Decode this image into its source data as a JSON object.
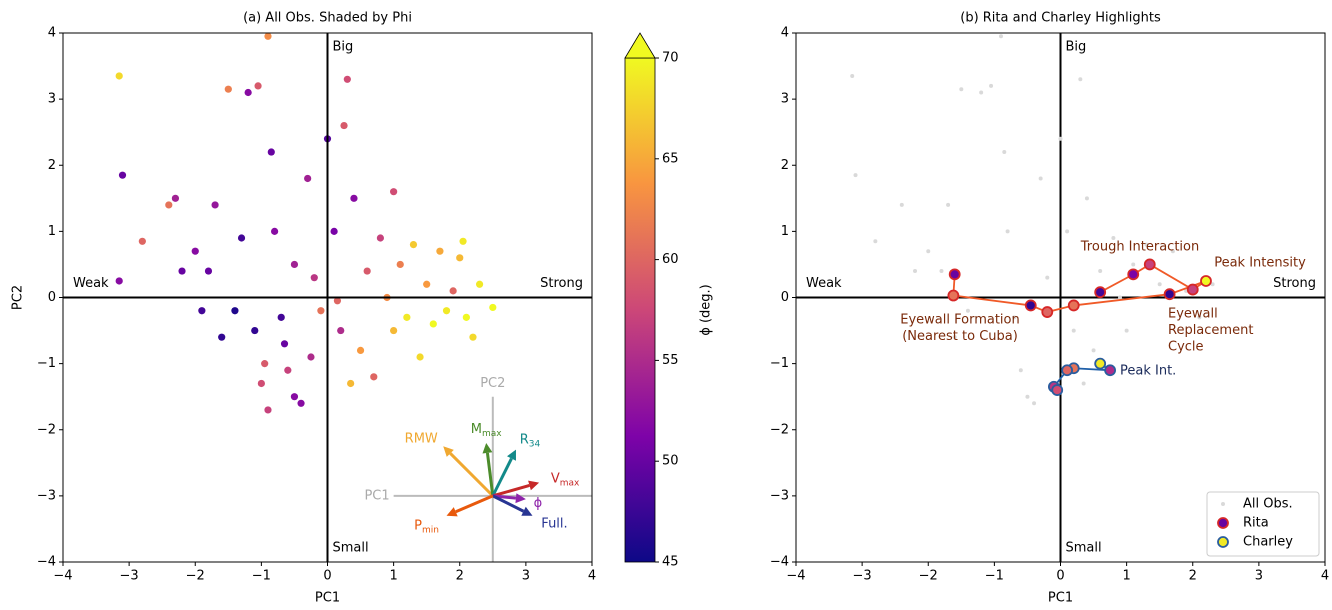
{
  "chart_data": [
    {
      "type": "scatter",
      "title": "(a) All Obs. Shaded by Phi",
      "x_label": "PC1",
      "y_label": "PC2",
      "xlim": [
        -4,
        4
      ],
      "ylim": [
        -4,
        4
      ],
      "xticks": [
        {
          "value": -4,
          "label": "−4"
        },
        {
          "value": -3,
          "label": "−3"
        },
        {
          "value": -2,
          "label": "−2"
        },
        {
          "value": -1,
          "label": "−1"
        },
        0,
        1,
        2,
        3,
        4
      ],
      "yticks": [
        {
          "value": -4,
          "label": "−4"
        },
        {
          "value": -3,
          "label": "−3"
        },
        {
          "value": -2,
          "label": "−2"
        },
        {
          "value": -1,
          "label": "−1"
        },
        0,
        1,
        2,
        3,
        4
      ],
      "quadrant_labels": {
        "top": "Big",
        "bottom": "Small",
        "left": "Weak",
        "right": "Strong"
      },
      "x": [
        -3.15,
        -3.1,
        -3.15,
        -2.8,
        -2.4,
        -2.3,
        -2,
        -1.9,
        -1.8,
        -1.6,
        -1.5,
        -1.2,
        -1.05,
        -0.9,
        -0.85,
        -0.8,
        -0.7,
        -0.6,
        -0.5,
        -0.95,
        -1.1,
        -1.3,
        -0.3,
        -0.2,
        -0.1,
        0,
        0.1,
        0.2,
        0.25,
        0.3,
        0.4,
        0.5,
        0.6,
        0.7,
        0.8,
        0.9,
        1,
        1,
        1.1,
        1.2,
        1.3,
        1.4,
        1.5,
        1.6,
        1.7,
        1.8,
        1.9,
        2,
        2.1,
        2.2,
        2.3,
        2.5,
        2.05,
        -0.4,
        -0.9,
        0.35,
        -0.25,
        -1.4,
        -2.2,
        -1.7,
        -0.5,
        0.15,
        -0.65,
        -1
      ],
      "y": [
        3.35,
        1.85,
        0.25,
        0.85,
        1.4,
        1.5,
        0.7,
        -0.2,
        0.4,
        -0.6,
        3.15,
        3.1,
        3.2,
        3.95,
        2.2,
        1,
        -0.3,
        -1.1,
        -1.5,
        -1,
        -0.5,
        0.9,
        1.8,
        0.3,
        -0.2,
        2.4,
        1,
        -0.5,
        2.6,
        3.3,
        1.5,
        -0.8,
        0.4,
        -1.2,
        0.9,
        0,
        -0.5,
        1.6,
        0.5,
        -0.3,
        0.8,
        -0.9,
        0.2,
        -0.4,
        0.7,
        -0.2,
        0.1,
        0.6,
        -0.3,
        -0.6,
        0.2,
        -0.15,
        0.85,
        -1.6,
        -1.7,
        -1.3,
        -0.9,
        -0.2,
        0.4,
        1.4,
        0.5,
        -0.05,
        -0.7,
        -1.3
      ],
      "color_values": [
        68,
        50,
        52,
        60,
        61,
        54,
        52,
        48,
        50,
        47,
        62,
        52,
        59,
        63,
        50,
        52,
        48,
        57,
        52,
        59,
        47,
        48,
        54,
        56,
        61,
        49,
        51,
        55,
        59,
        58,
        52,
        64,
        59,
        60,
        57,
        63,
        66,
        58,
        62,
        69,
        67,
        68,
        64,
        70,
        65,
        69,
        60,
        66,
        70,
        68,
        69,
        70,
        69,
        52,
        57,
        66,
        55,
        46,
        50,
        53,
        54,
        60,
        50,
        58
      ],
      "colormap": "plasma",
      "clim": [
        45,
        70
      ],
      "cticks": [
        45,
        50,
        55,
        60,
        65,
        70
      ],
      "colorbar_label": "ϕ (deg.)",
      "inset": {
        "origin": [
          2.5,
          -3
        ],
        "axis_labels": [
          "PC1",
          "PC2"
        ],
        "arrows": [
          {
            "label": "RMW",
            "color": "#f0a830",
            "x": 1.75,
            "y": -2.25
          },
          {
            "label": "M",
            "sub": "max",
            "color": "#4c8c2b",
            "x": 2.4,
            "y": -2.2
          },
          {
            "label": "R",
            "sub": "34",
            "color": "#138a8a",
            "x": 2.85,
            "y": -2.3
          },
          {
            "label": "V",
            "sub": "max",
            "color": "#c62828",
            "x": 3.2,
            "y": -2.8
          },
          {
            "label": "ϕ",
            "color": "#8e24aa",
            "x": 3.0,
            "y": -3.05
          },
          {
            "label": "Full.",
            "color": "#283593",
            "x": 3.1,
            "y": -3.3
          },
          {
            "label": "P",
            "sub": "min",
            "color": "#e8590c",
            "x": 1.8,
            "y": -3.3
          }
        ]
      }
    },
    {
      "type": "scatter",
      "title": "(b) Rita and Charley Highlights",
      "x_label": "PC1",
      "xlim": [
        -4,
        4
      ],
      "ylim": [
        -4,
        4
      ],
      "xticks": [
        {
          "value": -4,
          "label": "−4"
        },
        {
          "value": -3,
          "label": "−3"
        },
        {
          "value": -2,
          "label": "−2"
        },
        {
          "value": -1,
          "label": "−1"
        },
        0,
        1,
        2,
        3,
        4
      ],
      "yticks": [
        {
          "value": -4,
          "label": "−4"
        },
        {
          "value": -3,
          "label": "−3"
        },
        {
          "value": -2,
          "label": "−2"
        },
        {
          "value": -1,
          "label": "−1"
        },
        0,
        1,
        2,
        3,
        4
      ],
      "quadrant_labels": {
        "top": "Big",
        "bottom": "Small",
        "left": "Weak",
        "right": "Strong"
      },
      "legend": "lower right",
      "series": [
        {
          "name": "All Obs.",
          "color": "#d9d9d9",
          "x": [
            -3.15,
            -3.1,
            -2.8,
            -2.4,
            -2.2,
            -2,
            -1.8,
            -1.6,
            -1.5,
            -1.2,
            -1.05,
            -0.9,
            -0.85,
            -0.8,
            -0.7,
            -0.6,
            -0.5,
            -0.3,
            -0.2,
            0,
            0.1,
            0.2,
            0.3,
            0.4,
            0.5,
            0.6,
            0.8,
            0.9,
            1,
            1.1,
            1.3,
            1.5,
            1.7,
            1.9,
            2.1,
            2.3,
            -0.4,
            0.35,
            -1.4,
            -1.7
          ],
          "y": [
            3.35,
            1.85,
            0.85,
            1.4,
            0.4,
            0.7,
            0.4,
            -0.6,
            3.15,
            3.1,
            3.2,
            3.95,
            2.2,
            1,
            -0.3,
            -1.1,
            -1.5,
            1.8,
            0.3,
            2.4,
            1,
            -0.5,
            3.3,
            1.5,
            -0.8,
            0.4,
            0.9,
            0,
            -0.5,
            0.5,
            0.8,
            0.2,
            0.7,
            0.1,
            -0.3,
            0.2,
            -1.6,
            -1.3,
            -0.2,
            1.4
          ]
        },
        {
          "name": "Rita",
          "color": "#f05a28",
          "edge": "#d62728",
          "x": [
            -1.6,
            -1.62,
            -0.45,
            -0.2,
            0.2,
            1.65,
            2.2,
            2.0,
            1.35,
            1.1,
            0.6
          ],
          "y": [
            0.35,
            0.03,
            -0.12,
            -0.22,
            -0.12,
            0.05,
            0.25,
            0.12,
            0.5,
            0.35,
            0.08
          ],
          "color_values": [
            50,
            61,
            47,
            60,
            61,
            47,
            70,
            57,
            57,
            51,
            48
          ]
        },
        {
          "name": "Charley",
          "color": "#1f5fa8",
          "edge": "#2a5d9f",
          "x": [
            0.6,
            0.75,
            0.2,
            0.1,
            -0.1,
            -0.05
          ],
          "y": [
            -1.0,
            -1.1,
            -1.07,
            -1.1,
            -1.35,
            -1.4
          ],
          "color_values": [
            69,
            55,
            61,
            60,
            56,
            58
          ]
        }
      ],
      "annotations": [
        {
          "text": [
            "Trough Interaction"
          ],
          "series": 1
        },
        {
          "text": [
            "Peak Intensity"
          ],
          "series": 1
        },
        {
          "text": [
            "Eyewall Formation",
            "(Nearest to Cuba)"
          ],
          "series": 1
        },
        {
          "text": [
            "Eyewall",
            "Replacement",
            "Cycle"
          ],
          "series": 1
        },
        {
          "text": [
            "Peak Int."
          ],
          "series": 2
        }
      ]
    }
  ]
}
